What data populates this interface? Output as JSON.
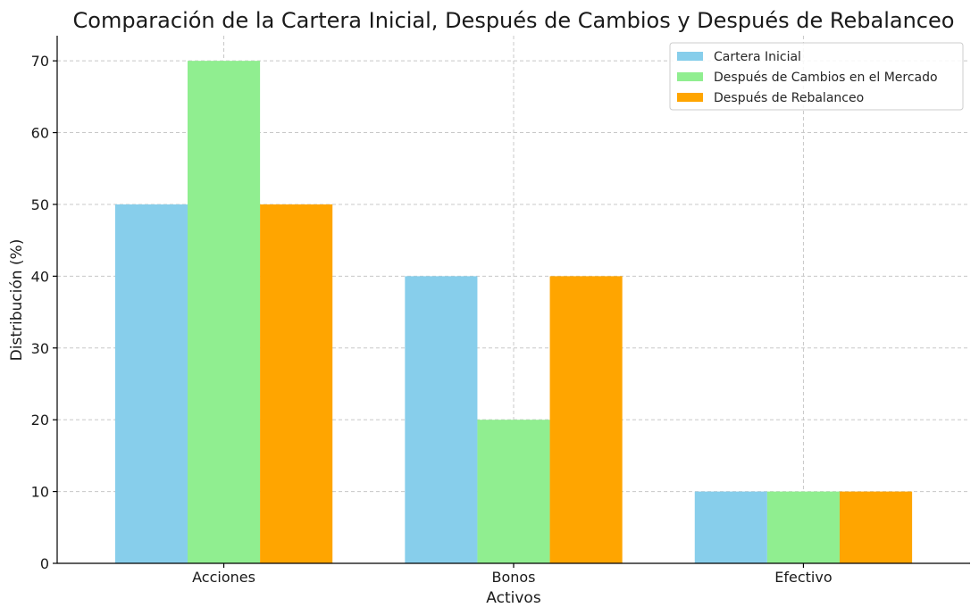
{
  "chart_data": {
    "type": "bar",
    "title": "Comparación de la Cartera Inicial, Después de Cambios y Después de Rebalanceo",
    "xlabel": "Activos",
    "ylabel": "Distribución (%)",
    "categories": [
      "Acciones",
      "Bonos",
      "Efectivo"
    ],
    "series": [
      {
        "name": "Cartera Inicial",
        "values": [
          50,
          40,
          10
        ],
        "color": "#87ceeb"
      },
      {
        "name": "Después de Cambios en el Mercado",
        "values": [
          70,
          20,
          10
        ],
        "color": "#90ee90"
      },
      {
        "name": "Después de Rebalanceo",
        "values": [
          50,
          40,
          10
        ],
        "color": "#ffa500"
      }
    ],
    "ylim": [
      0,
      73.5
    ],
    "yticks": [
      0,
      10,
      20,
      30,
      40,
      50,
      60,
      70
    ],
    "grid": true,
    "legend_position": "top-right"
  }
}
